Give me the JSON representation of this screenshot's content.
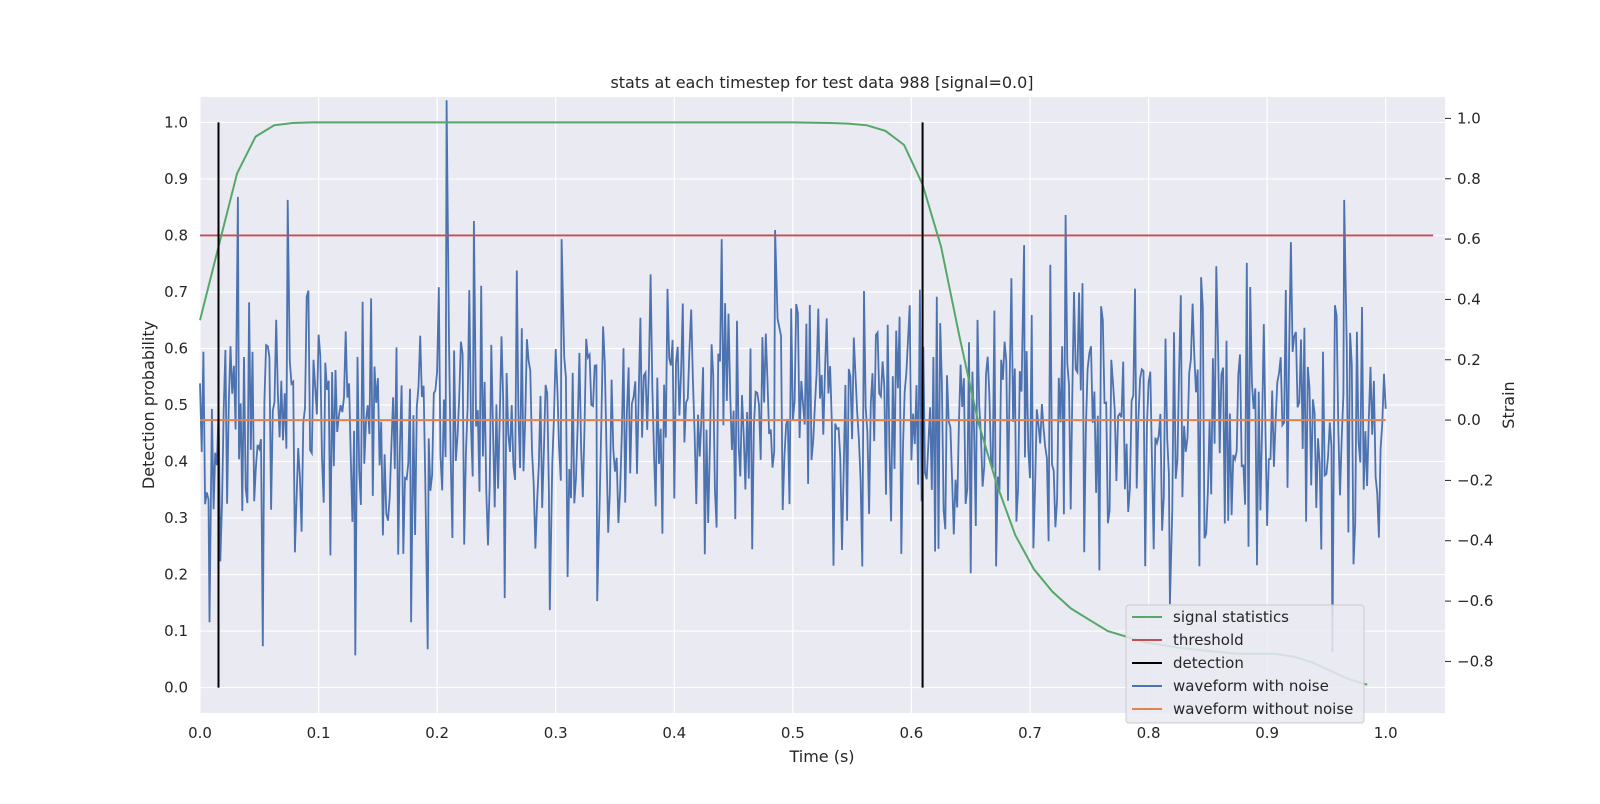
{
  "chart_data": {
    "type": "line",
    "title": "stats at each timestep for test data 988 [signal=0.0]",
    "xlabel": "Time (s)",
    "ylabel": "Detection probability",
    "y2label": "Strain",
    "xlim": [
      0.0,
      1.05
    ],
    "ylim": [
      -0.045,
      1.045
    ],
    "y2lim": [
      -0.971,
      1.071
    ],
    "grid": true,
    "legend_position": "bottom-right",
    "x_ticks": [
      0.0,
      0.1,
      0.2,
      0.3,
      0.4,
      0.5,
      0.6,
      0.7,
      0.8,
      0.9,
      1.0
    ],
    "x_tick_labels": [
      "0.0",
      "0.1",
      "0.2",
      "0.3",
      "0.4",
      "0.5",
      "0.6",
      "0.7",
      "0.8",
      "0.9",
      "1.0"
    ],
    "y_ticks": [
      0.0,
      0.1,
      0.2,
      0.3,
      0.4,
      0.5,
      0.6,
      0.7,
      0.8,
      0.9,
      1.0
    ],
    "y_tick_labels": [
      "0.0",
      "0.1",
      "0.2",
      "0.3",
      "0.4",
      "0.5",
      "0.6",
      "0.7",
      "0.8",
      "0.9",
      "1.0"
    ],
    "y2_ticks": [
      -0.8,
      -0.6,
      -0.4,
      -0.2,
      0.0,
      0.2,
      0.4,
      0.6,
      0.8,
      1.0
    ],
    "y2_tick_labels": [
      "−0.8",
      "−0.6",
      "−0.4",
      "−0.2",
      "0.0",
      "0.2",
      "0.4",
      "0.6",
      "0.8",
      "1.0"
    ],
    "series": [
      {
        "name": "signal statistics",
        "color": "#55a868",
        "axis": "left",
        "x": [
          0.0,
          0.0156,
          0.0313,
          0.0469,
          0.0625,
          0.0781,
          0.0938,
          0.1094,
          0.125,
          0.25,
          0.375,
          0.5,
          0.5313,
          0.5469,
          0.5625,
          0.5781,
          0.5938,
          0.6094,
          0.625,
          0.6406,
          0.6563,
          0.6719,
          0.6875,
          0.7031,
          0.7188,
          0.7344,
          0.75,
          0.7656,
          0.7813,
          0.7969,
          0.8125,
          0.8281,
          0.8438,
          0.8594,
          0.875,
          0.8906,
          0.9063,
          0.9219,
          0.9375,
          0.9531,
          0.9688,
          0.9844
        ],
        "y": [
          0.65,
          0.78,
          0.91,
          0.975,
          0.995,
          0.999,
          1.0,
          1.0,
          1.0,
          1.0,
          1.0,
          1.0,
          0.999,
          0.998,
          0.995,
          0.985,
          0.96,
          0.89,
          0.78,
          0.62,
          0.47,
          0.36,
          0.27,
          0.21,
          0.17,
          0.14,
          0.12,
          0.1,
          0.09,
          0.08,
          0.075,
          0.07,
          0.066,
          0.063,
          0.06,
          0.06,
          0.06,
          0.055,
          0.045,
          0.03,
          0.015,
          0.005
        ]
      },
      {
        "name": "threshold",
        "color": "#c44e52",
        "axis": "left",
        "x": [
          0.0,
          1.04
        ],
        "y": [
          0.8,
          0.8
        ]
      },
      {
        "name": "detection",
        "color": "#000000",
        "axis": "left",
        "segments": [
          {
            "x": 0.0156,
            "y": [
              0.0,
              1.0
            ]
          },
          {
            "x": 0.6094,
            "y": [
              0.0,
              1.0
            ]
          }
        ]
      },
      {
        "name": "waveform with noise",
        "color": "#4c72b0",
        "axis": "right",
        "x_start": 0.0,
        "x_end": 1.0,
        "peaks": [
          {
            "x": 0.008,
            "y": -0.67
          },
          {
            "x": 0.032,
            "y": 0.74
          },
          {
            "x": 0.053,
            "y": -0.75
          },
          {
            "x": 0.074,
            "y": 0.73
          },
          {
            "x": 0.131,
            "y": -0.78
          },
          {
            "x": 0.178,
            "y": -0.67
          },
          {
            "x": 0.192,
            "y": -0.76
          },
          {
            "x": 0.208,
            "y": 1.06
          },
          {
            "x": 0.231,
            "y": 0.66
          },
          {
            "x": 0.257,
            "y": -0.59
          },
          {
            "x": 0.295,
            "y": -0.63
          },
          {
            "x": 0.305,
            "y": 0.6
          },
          {
            "x": 0.335,
            "y": -0.6
          },
          {
            "x": 0.44,
            "y": 0.6
          },
          {
            "x": 0.485,
            "y": 0.63
          },
          {
            "x": 0.695,
            "y": 0.58
          },
          {
            "x": 0.73,
            "y": 0.68
          },
          {
            "x": 0.818,
            "y": -0.61
          },
          {
            "x": 0.92,
            "y": 0.59
          },
          {
            "x": 0.955,
            "y": -0.77
          },
          {
            "x": 0.965,
            "y": 0.73
          }
        ],
        "amplitude_range": [
          -0.55,
          0.55
        ]
      },
      {
        "name": "waveform without noise",
        "color": "#dd8452",
        "axis": "right",
        "x": [
          0.0,
          1.0
        ],
        "y": [
          0.0,
          0.0
        ]
      }
    ]
  }
}
